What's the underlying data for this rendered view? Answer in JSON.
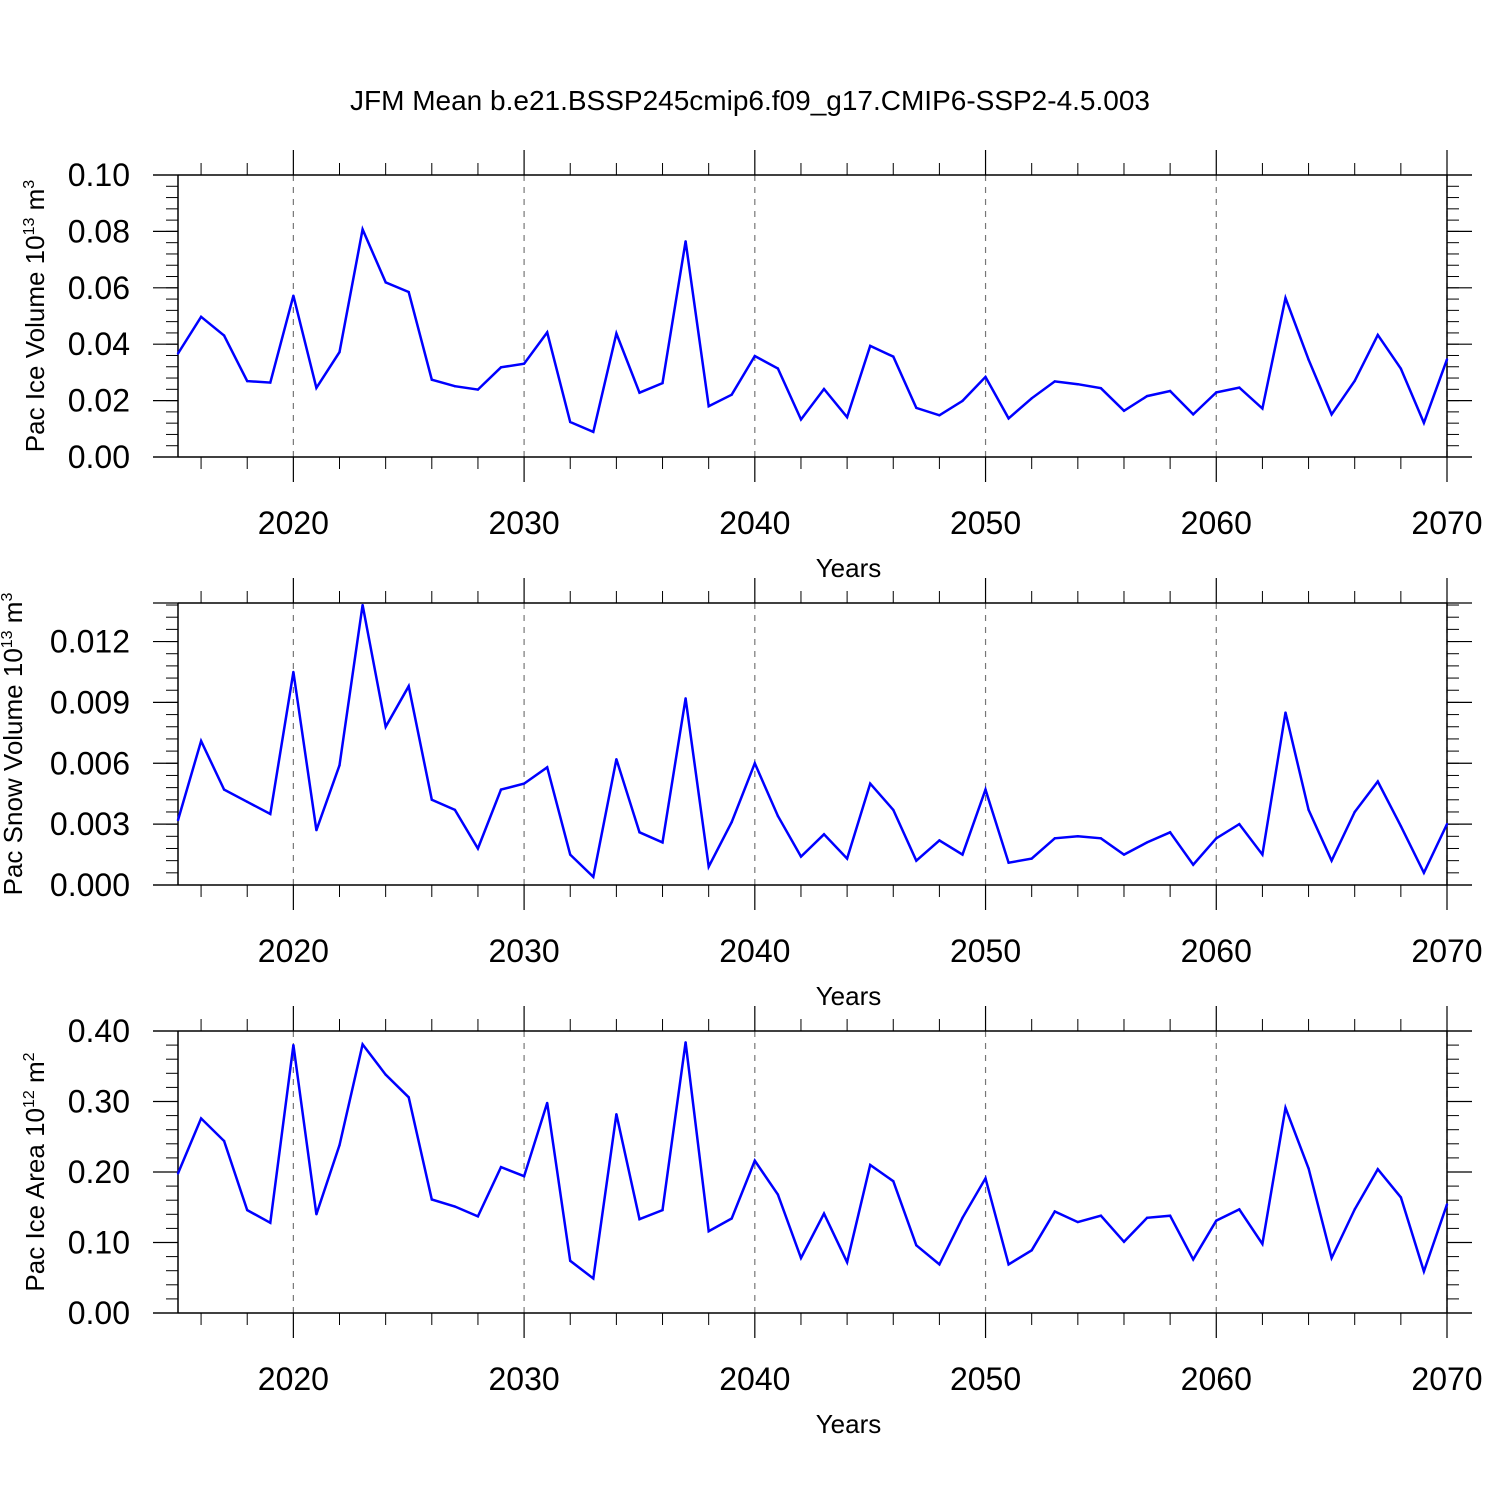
{
  "title": "JFM Mean b.e21.BSSP245cmip6.f09_g17.CMIP6-SSP2-4.5.003",
  "line_color": "#0000ff",
  "chart_data": [
    {
      "type": "line",
      "ylabel_main": "Pac Ice Volume 10",
      "ylabel_exp": "13",
      "ylabel_unit": "m",
      "ylabel_unit_exp": "3",
      "xlabel": "Years",
      "xlim": [
        2015,
        2070
      ],
      "ylim": [
        0,
        0.1
      ],
      "yticks": [
        0,
        0.02,
        0.04,
        0.06,
        0.08,
        0.1
      ],
      "yticklabels": [
        "0.00",
        "0.02",
        "0.04",
        "0.06",
        "0.08",
        "0.10"
      ],
      "xticks": [
        2020,
        2030,
        2040,
        2050,
        2060,
        2070
      ],
      "xticklabels": [
        "2020",
        "2030",
        "2040",
        "2050",
        "2060",
        "2070"
      ],
      "x": [
        2015,
        2016,
        2017,
        2018,
        2019,
        2020,
        2021,
        2022,
        2023,
        2024,
        2025,
        2026,
        2027,
        2028,
        2029,
        2030,
        2031,
        2032,
        2033,
        2034,
        2035,
        2036,
        2037,
        2038,
        2039,
        2040,
        2041,
        2042,
        2043,
        2044,
        2045,
        2046,
        2047,
        2048,
        2049,
        2050,
        2051,
        2052,
        2053,
        2054,
        2055,
        2056,
        2057,
        2058,
        2059,
        2060,
        2061,
        2062,
        2063,
        2064,
        2065,
        2066,
        2067,
        2068,
        2069,
        2070
      ],
      "values": [
        0.0367,
        0.0497,
        0.0431,
        0.0269,
        0.0264,
        0.0572,
        0.0245,
        0.0372,
        0.0807,
        0.0619,
        0.0585,
        0.0274,
        0.0251,
        0.0239,
        0.0318,
        0.0331,
        0.0442,
        0.0124,
        0.0089,
        0.0438,
        0.0228,
        0.0262,
        0.0765,
        0.018,
        0.0221,
        0.0358,
        0.0314,
        0.0133,
        0.0241,
        0.0141,
        0.0394,
        0.0356,
        0.0174,
        0.0148,
        0.0199,
        0.0284,
        0.0137,
        0.0208,
        0.0268,
        0.0258,
        0.0244,
        0.0164,
        0.0216,
        0.0234,
        0.0151,
        0.0229,
        0.0246,
        0.0172,
        0.0564,
        0.0345,
        0.0151,
        0.027,
        0.0433,
        0.0313,
        0.0121,
        0.0346
      ]
    },
    {
      "type": "line",
      "ylabel_main": "Pac Snow Volume 10",
      "ylabel_exp": "13",
      "ylabel_unit": "m",
      "ylabel_unit_exp": "3",
      "xlabel": "Years",
      "xlim": [
        2015,
        2070
      ],
      "ylim": [
        0,
        0.0139
      ],
      "yticks": [
        0,
        0.003,
        0.006,
        0.009,
        0.012
      ],
      "yticklabels": [
        "0.000",
        "0.003",
        "0.006",
        "0.009",
        "0.012"
      ],
      "xticks": [
        2020,
        2030,
        2040,
        2050,
        2060,
        2070
      ],
      "xticklabels": [
        "2020",
        "2030",
        "2040",
        "2050",
        "2060",
        "2070"
      ],
      "x": [
        2015,
        2016,
        2017,
        2018,
        2019,
        2020,
        2021,
        2022,
        2023,
        2024,
        2025,
        2026,
        2027,
        2028,
        2029,
        2030,
        2031,
        2032,
        2033,
        2034,
        2035,
        2036,
        2037,
        2038,
        2039,
        2040,
        2041,
        2042,
        2043,
        2044,
        2045,
        2046,
        2047,
        2048,
        2049,
        2050,
        2051,
        2052,
        2053,
        2054,
        2055,
        2056,
        2057,
        2058,
        2059,
        2060,
        2061,
        2062,
        2063,
        2064,
        2065,
        2066,
        2067,
        2068,
        2069,
        2070
      ],
      "values": [
        0.0032,
        0.0071,
        0.0047,
        0.0041,
        0.0035,
        0.0105,
        0.0027,
        0.0059,
        0.0138,
        0.0078,
        0.0098,
        0.0042,
        0.0037,
        0.0018,
        0.0047,
        0.005,
        0.0058,
        0.0015,
        0.0004,
        0.0062,
        0.0026,
        0.0021,
        0.0092,
        0.0009,
        0.0031,
        0.006,
        0.0034,
        0.0014,
        0.0025,
        0.0013,
        0.005,
        0.0037,
        0.0012,
        0.0022,
        0.0015,
        0.0047,
        0.0011,
        0.0013,
        0.0023,
        0.0024,
        0.0023,
        0.0015,
        0.0021,
        0.0026,
        0.001,
        0.0023,
        0.003,
        0.0015,
        0.0085,
        0.0037,
        0.0012,
        0.0036,
        0.0051,
        0.0029,
        0.0006,
        0.003
      ]
    },
    {
      "type": "line",
      "ylabel_main": "Pac Ice Area 10",
      "ylabel_exp": "12",
      "ylabel_unit": "m",
      "ylabel_unit_exp": "2",
      "xlabel": "Years",
      "xlim": [
        2015,
        2070
      ],
      "ylim": [
        0,
        0.4
      ],
      "yticks": [
        0,
        0.1,
        0.2,
        0.3,
        0.4
      ],
      "yticklabels": [
        "0.00",
        "0.10",
        "0.20",
        "0.30",
        "0.40"
      ],
      "xticks": [
        2020,
        2030,
        2040,
        2050,
        2060,
        2070
      ],
      "xticklabels": [
        "2020",
        "2030",
        "2040",
        "2050",
        "2060",
        "2070"
      ],
      "x": [
        2015,
        2016,
        2017,
        2018,
        2019,
        2020,
        2021,
        2022,
        2023,
        2024,
        2025,
        2026,
        2027,
        2028,
        2029,
        2030,
        2031,
        2032,
        2033,
        2034,
        2035,
        2036,
        2037,
        2038,
        2039,
        2040,
        2041,
        2042,
        2043,
        2044,
        2045,
        2046,
        2047,
        2048,
        2049,
        2050,
        2051,
        2052,
        2053,
        2054,
        2055,
        2056,
        2057,
        2058,
        2059,
        2060,
        2061,
        2062,
        2063,
        2064,
        2065,
        2066,
        2067,
        2068,
        2069,
        2070
      ],
      "values": [
        0.198,
        0.276,
        0.244,
        0.146,
        0.128,
        0.38,
        0.14,
        0.238,
        0.381,
        0.338,
        0.306,
        0.161,
        0.151,
        0.137,
        0.207,
        0.194,
        0.298,
        0.074,
        0.049,
        0.282,
        0.133,
        0.146,
        0.384,
        0.116,
        0.134,
        0.216,
        0.168,
        0.078,
        0.141,
        0.072,
        0.21,
        0.187,
        0.096,
        0.069,
        0.135,
        0.191,
        0.069,
        0.089,
        0.144,
        0.129,
        0.138,
        0.101,
        0.135,
        0.138,
        0.076,
        0.131,
        0.147,
        0.098,
        0.291,
        0.205,
        0.078,
        0.147,
        0.204,
        0.164,
        0.059,
        0.154
      ]
    }
  ]
}
